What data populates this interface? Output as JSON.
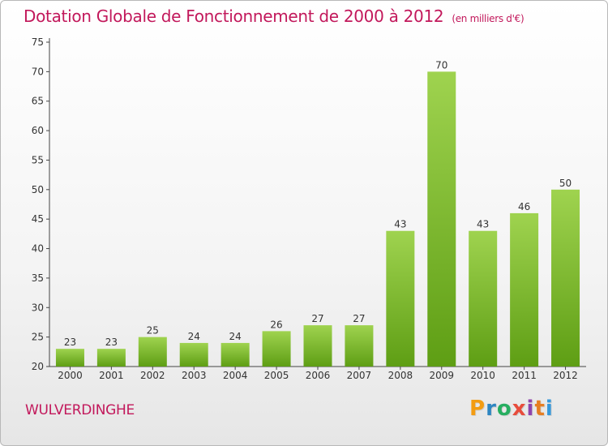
{
  "header": {
    "title": "Dotation Globale de Fonctionnement de 2000 à 2012",
    "subtitle": "(en milliers d'€)"
  },
  "footer": {
    "commune": "WULVERDINGHE",
    "logo_letters": [
      "P",
      "r",
      "o",
      "x",
      "i",
      "t",
      "i"
    ],
    "logo_colors": [
      "#f39c12",
      "#2e86c1",
      "#27ae60",
      "#e74c3c",
      "#8e44ad",
      "#e67e22",
      "#3498db"
    ]
  },
  "colors": {
    "accent": "#c2185b",
    "bar_top": "#9fd34f",
    "bar_bottom": "#5e9e14"
  },
  "chart_data": {
    "type": "bar",
    "title": "Dotation Globale de Fonctionnement de 2000 à 2012",
    "subtitle": "(en milliers d'€)",
    "categories": [
      "2000",
      "2001",
      "2002",
      "2003",
      "2004",
      "2005",
      "2006",
      "2007",
      "2008",
      "2009",
      "2010",
      "2011",
      "2012"
    ],
    "values": [
      23,
      23,
      25,
      24,
      24,
      26,
      27,
      27,
      43,
      70,
      43,
      46,
      50
    ],
    "ylim": [
      20,
      75
    ],
    "yticks": [
      20,
      25,
      30,
      35,
      40,
      45,
      50,
      55,
      60,
      65,
      70,
      75
    ],
    "grid": false,
    "legend": "none"
  }
}
